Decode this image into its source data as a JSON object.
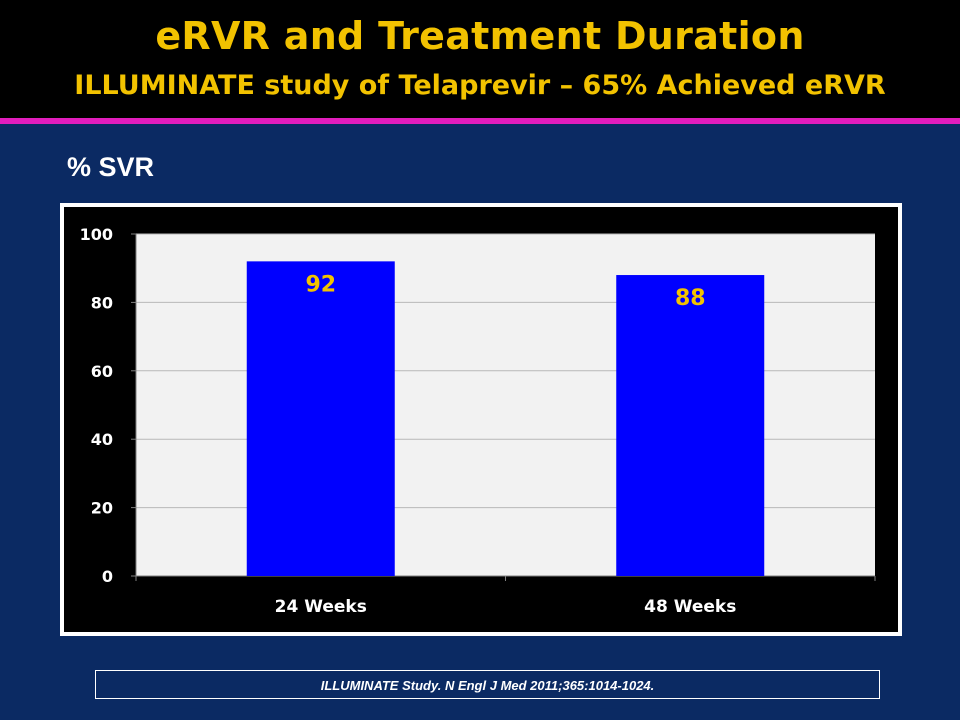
{
  "slide": {
    "title": "eRVR and Treatment Duration",
    "subtitle": "ILLUMINATE study of Telaprevir – 65% Achieved eRVR",
    "citation": "ILLUMINATE Study.  N Engl J Med 2011;365:1014-1024."
  },
  "colors": {
    "background": "#0b2a63",
    "title_text": "#f2c200",
    "accent_rule": "#e21dbd",
    "bar": "#0000ff",
    "bar_label": "#f2c200",
    "plot_area": "#f2f2f2"
  },
  "chart_data": {
    "type": "bar",
    "title": "",
    "ylabel": "% SVR",
    "xlabel": "",
    "categories": [
      "24 Weeks",
      "48 Weeks"
    ],
    "values": [
      92,
      88
    ],
    "data_labels": [
      "92",
      "88"
    ],
    "ylim": [
      0,
      100
    ],
    "yticks": [
      0,
      20,
      40,
      60,
      80,
      100
    ],
    "grid": true,
    "legend": "none"
  }
}
